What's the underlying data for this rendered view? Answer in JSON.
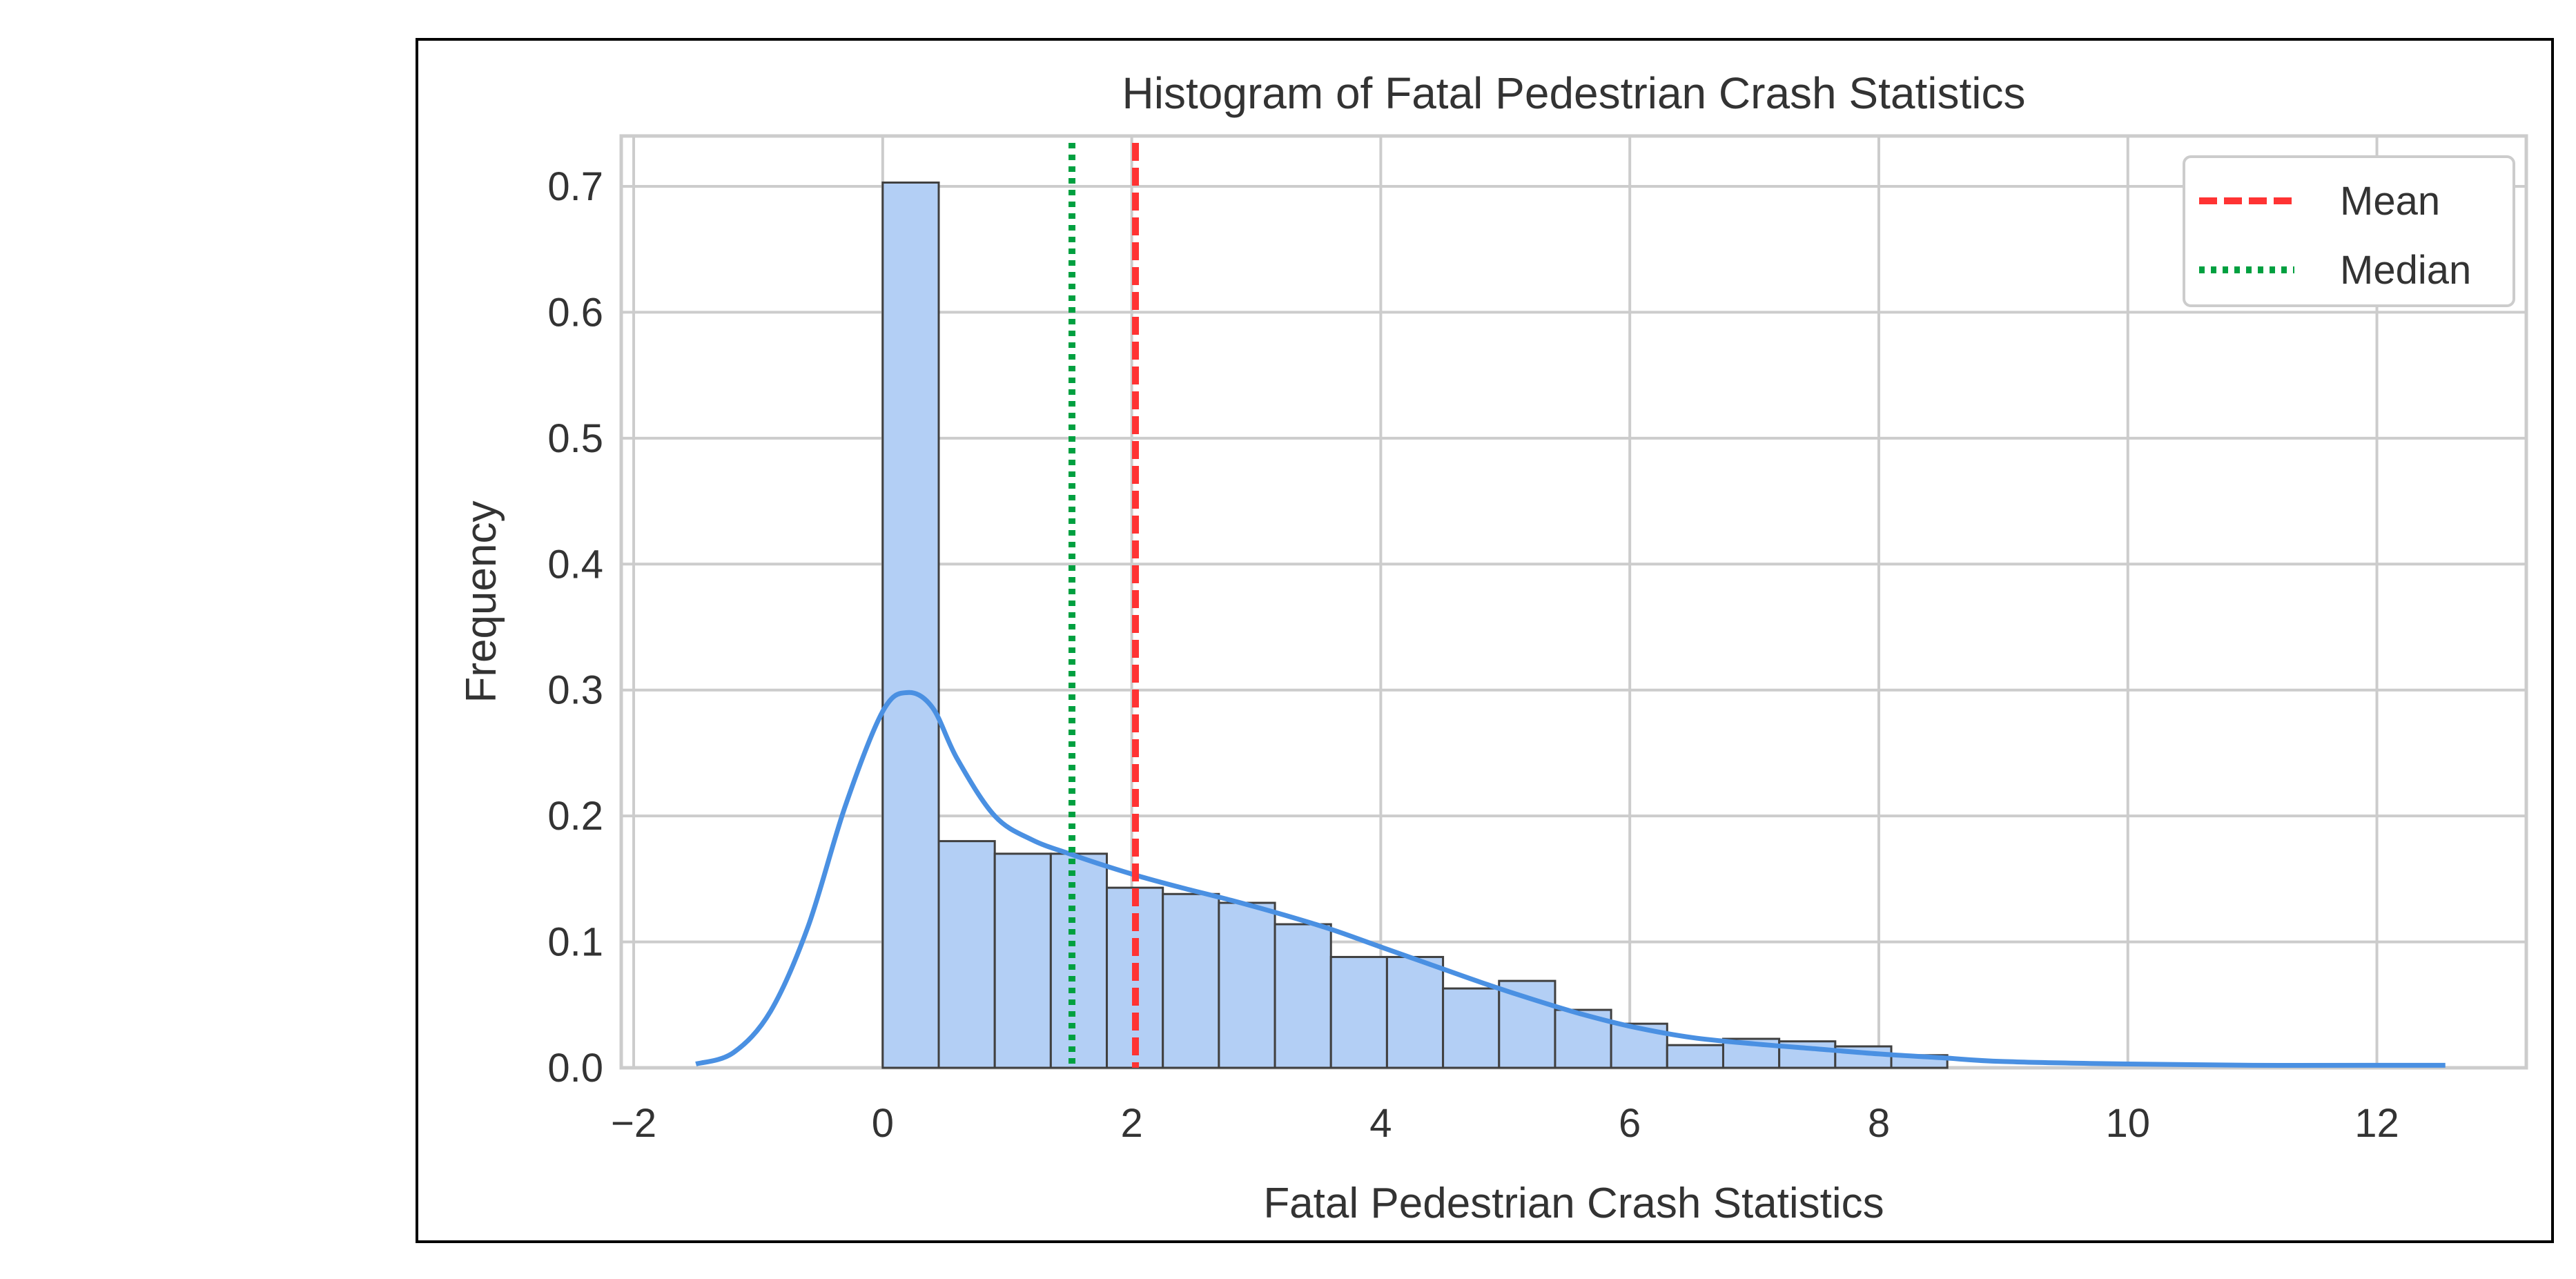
{
  "chart_data": {
    "type": "bar",
    "title": "Histogram of Fatal Pedestrian Crash Statistics",
    "xlabel": "Fatal Pedestrian Crash Statistics",
    "ylabel": "Frequency",
    "xlim": [
      -2.1,
      13.2
    ],
    "ylim": [
      0,
      0.74
    ],
    "xticks": [
      -2,
      0,
      2,
      4,
      6,
      8,
      10,
      12
    ],
    "xtick_labels": [
      "−2",
      "0",
      "2",
      "4",
      "6",
      "8",
      "10",
      "12"
    ],
    "yticks": [
      0.0,
      0.1,
      0.2,
      0.3,
      0.4,
      0.5,
      0.6,
      0.7
    ],
    "ytick_labels": [
      "0.0",
      "0.1",
      "0.2",
      "0.3",
      "0.4",
      "0.5",
      "0.6",
      "0.7"
    ],
    "grid": true,
    "legend_position": "top-right",
    "bins": [
      {
        "x0": 0.0,
        "x1": 0.45,
        "value": 0.703
      },
      {
        "x0": 0.45,
        "x1": 0.9,
        "value": 0.18
      },
      {
        "x0": 0.9,
        "x1": 1.35,
        "value": 0.17
      },
      {
        "x0": 1.35,
        "x1": 1.8,
        "value": 0.17
      },
      {
        "x0": 1.8,
        "x1": 2.25,
        "value": 0.143
      },
      {
        "x0": 2.25,
        "x1": 2.7,
        "value": 0.138
      },
      {
        "x0": 2.7,
        "x1": 3.15,
        "value": 0.131
      },
      {
        "x0": 3.15,
        "x1": 3.6,
        "value": 0.114
      },
      {
        "x0": 3.6,
        "x1": 4.05,
        "value": 0.088
      },
      {
        "x0": 4.05,
        "x1": 4.5,
        "value": 0.088
      },
      {
        "x0": 4.5,
        "x1": 4.95,
        "value": 0.063
      },
      {
        "x0": 4.95,
        "x1": 5.4,
        "value": 0.069
      },
      {
        "x0": 5.4,
        "x1": 5.85,
        "value": 0.046
      },
      {
        "x0": 5.85,
        "x1": 6.3,
        "value": 0.035
      },
      {
        "x0": 6.3,
        "x1": 6.75,
        "value": 0.018
      },
      {
        "x0": 6.75,
        "x1": 7.2,
        "value": 0.023
      },
      {
        "x0": 7.2,
        "x1": 7.65,
        "value": 0.021
      },
      {
        "x0": 7.65,
        "x1": 8.1,
        "value": 0.017
      },
      {
        "x0": 8.1,
        "x1": 8.55,
        "value": 0.01
      }
    ],
    "kde": {
      "x": [
        -1.5,
        -1.2,
        -0.9,
        -0.6,
        -0.3,
        0.0,
        0.2,
        0.4,
        0.6,
        0.9,
        1.2,
        1.5,
        1.8,
        2.1,
        2.4,
        2.8,
        3.2,
        3.6,
        4.0,
        4.4,
        4.8,
        5.2,
        5.6,
        6.0,
        6.5,
        7.0,
        7.5,
        8.0,
        8.5,
        9.0,
        10.0,
        11.0,
        12.0,
        12.55
      ],
      "y": [
        0.003,
        0.012,
        0.045,
        0.112,
        0.208,
        0.283,
        0.298,
        0.286,
        0.245,
        0.2,
        0.181,
        0.17,
        0.16,
        0.151,
        0.143,
        0.133,
        0.122,
        0.11,
        0.096,
        0.082,
        0.068,
        0.055,
        0.043,
        0.033,
        0.024,
        0.019,
        0.015,
        0.011,
        0.008,
        0.005,
        0.003,
        0.002,
        0.002,
        0.002
      ]
    },
    "reference_lines": [
      {
        "name": "Mean",
        "x": 2.03,
        "color": "#ff3333",
        "style": "dashed"
      },
      {
        "name": "Median",
        "x": 1.52,
        "color": "#00a040",
        "style": "dotted"
      }
    ],
    "colors": {
      "bar_fill": "#b3cff5",
      "bar_edge": "#404040",
      "kde_line": "#4a90e2",
      "grid": "#cccccc",
      "axes_edge": "#cccccc"
    }
  }
}
